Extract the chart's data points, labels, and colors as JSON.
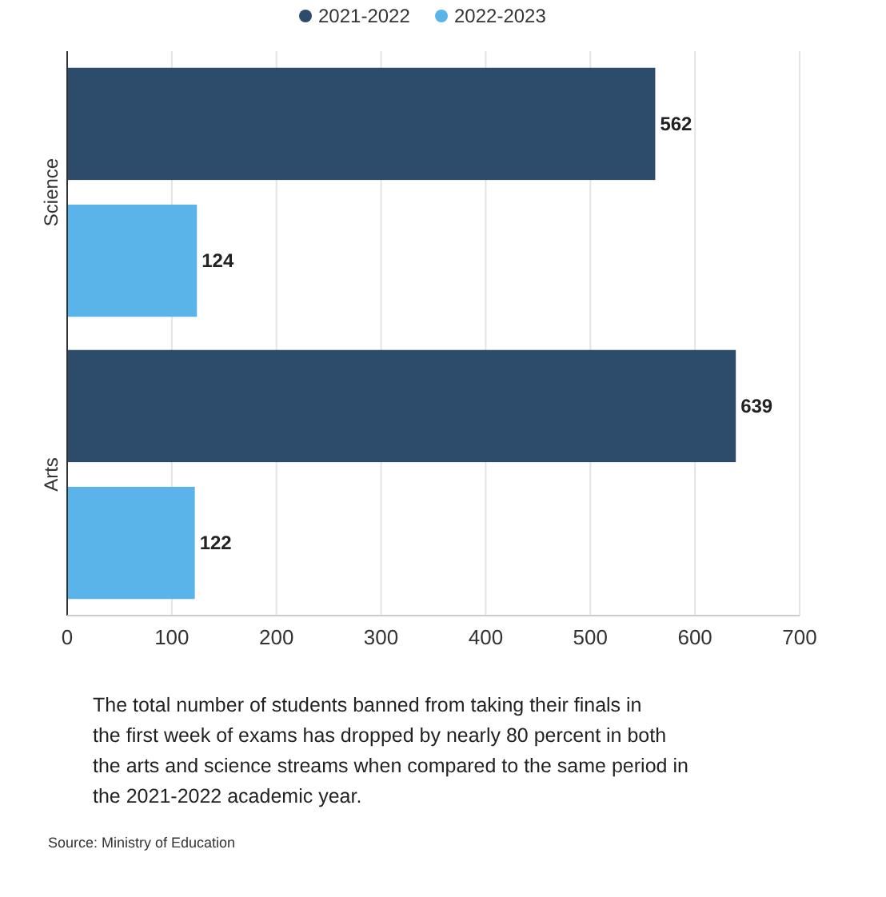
{
  "chart_data": {
    "type": "bar",
    "orientation": "horizontal",
    "categories": [
      "Science",
      "Arts"
    ],
    "series": [
      {
        "name": "2021-2022",
        "color": "#2d4b6a",
        "values": [
          562,
          639
        ]
      },
      {
        "name": "2022-2023",
        "color": "#5ab4ea",
        "values": [
          124,
          122
        ]
      }
    ],
    "xlim": [
      0,
      700
    ],
    "xticks": [
      0,
      100,
      200,
      300,
      400,
      500,
      600,
      700
    ],
    "grid": "x",
    "legend": "top",
    "data_labels": true,
    "annotations": [
      "The total number of students banned from taking their finals in the first week of exams has dropped by nearly 80 percent in both the arts and science streams when compared to the same period in the 2021-2022 academic year.",
      "Source: Ministry of Education"
    ]
  }
}
